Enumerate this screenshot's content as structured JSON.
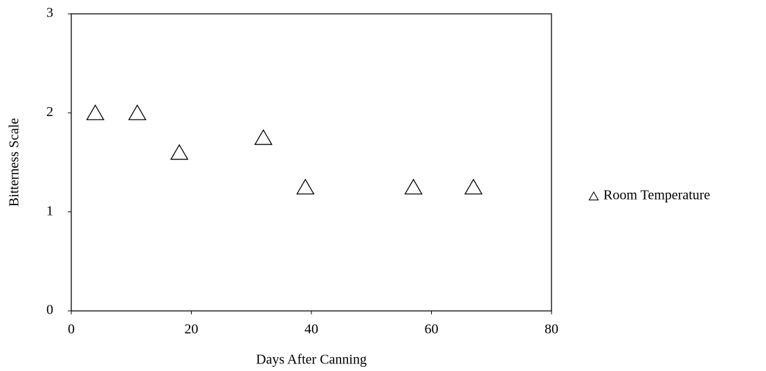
{
  "chart_data": {
    "type": "scatter",
    "x_label": "Days After Canning",
    "y_label": "Bitterness Scale",
    "x": [
      4,
      11,
      18,
      32,
      39,
      57,
      67
    ],
    "series": [
      {
        "name": "Room Temperature",
        "color": "#000000",
        "marker": "triangle",
        "values": [
          2,
          2,
          1.6,
          1.75,
          1.25,
          1.25,
          1.25
        ]
      }
    ],
    "xlim": [
      0,
      80
    ],
    "xticks": [
      0,
      20,
      40,
      60,
      80
    ],
    "ylim": [
      0,
      3
    ],
    "yticks": [
      0,
      1,
      2,
      3
    ],
    "grid": false,
    "legend": "right"
  }
}
